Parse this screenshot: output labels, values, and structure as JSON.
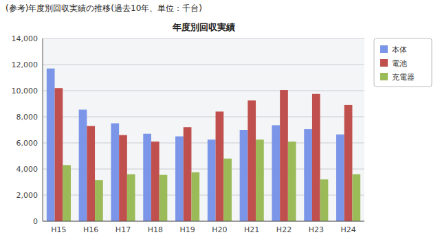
{
  "chart_data": {
    "type": "bar",
    "title": "年度別回収実績",
    "subtitle": "(参考)年度別回収実績の推移(過去10年、単位：千台)",
    "categories": [
      "H15",
      "H16",
      "H17",
      "H18",
      "H19",
      "H20",
      "H21",
      "H22",
      "H23",
      "H24"
    ],
    "series": [
      {
        "name": "本体",
        "color": "#7B96E8",
        "values": [
          11700,
          8550,
          7500,
          6700,
          6500,
          6250,
          7000,
          7350,
          7050,
          6650
        ]
      },
      {
        "name": "電池",
        "color": "#C0504D",
        "values": [
          10200,
          7300,
          6600,
          6100,
          7200,
          8400,
          9250,
          10050,
          9750,
          8900
        ]
      },
      {
        "name": "充電器",
        "color": "#9BBB59",
        "values": [
          4300,
          3150,
          3600,
          3550,
          3750,
          4800,
          6250,
          6100,
          3200,
          3600
        ]
      }
    ],
    "ylim": [
      0,
      14000
    ],
    "yticks": [
      0,
      {
        "value": 2000,
        "label": "2,000"
      },
      {
        "value": 4000,
        "label": "4,000"
      },
      {
        "value": 6000,
        "label": "6,000"
      },
      {
        "value": 8000,
        "label": "8,000"
      },
      {
        "value": 10000,
        "label": "10,000"
      },
      {
        "value": 12000,
        "label": "12,000"
      },
      {
        "value": 14000,
        "label": "14,000"
      }
    ],
    "grid": true,
    "legend": "right"
  }
}
